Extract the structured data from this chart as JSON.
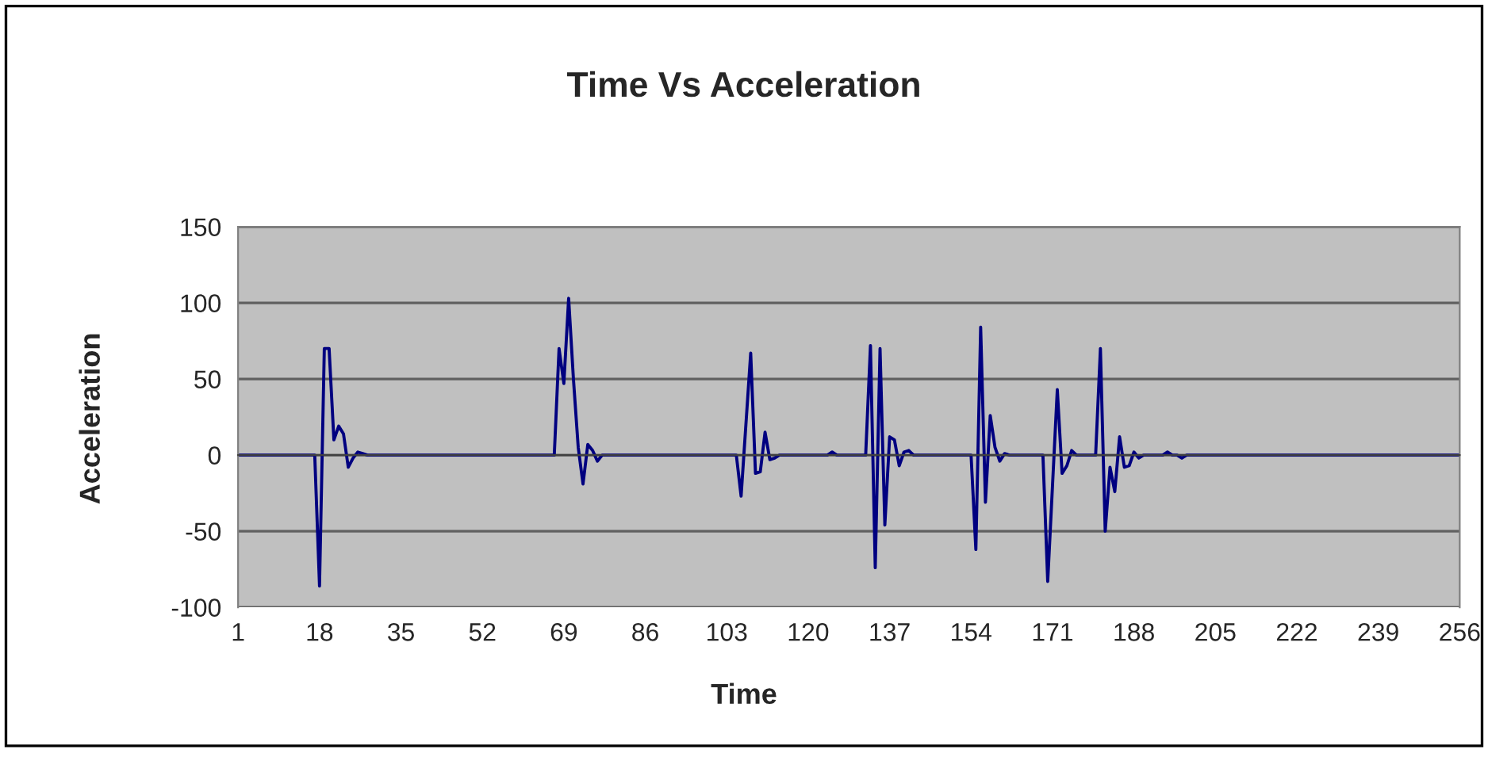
{
  "chart_data": {
    "type": "line",
    "title": "Time Vs Acceleration",
    "xlabel": "Time",
    "ylabel": "Acceleration",
    "categories": [
      "1",
      null,
      null,
      null,
      null,
      null,
      null,
      null,
      null,
      null,
      null,
      null,
      null,
      null,
      null,
      null,
      null,
      "18",
      null,
      null,
      null,
      null,
      null,
      null,
      null,
      null,
      null,
      null,
      null,
      null,
      null,
      null,
      null,
      null,
      "35",
      null,
      null,
      null,
      null,
      null,
      null,
      null,
      null,
      null,
      null,
      null,
      null,
      null,
      null,
      null,
      null,
      "52",
      null,
      null,
      null,
      null,
      null,
      null,
      null,
      null,
      null,
      null,
      null,
      null,
      null,
      null,
      null,
      null,
      "69",
      null,
      null,
      null,
      null,
      null,
      null,
      null,
      null,
      null,
      null,
      null,
      null,
      null,
      null,
      null,
      null,
      "86",
      null,
      null,
      null,
      null,
      null,
      null,
      null,
      null,
      null,
      null,
      null,
      null,
      null,
      null,
      null,
      null,
      "103",
      null,
      null,
      null,
      null,
      null,
      null,
      null,
      null,
      null,
      null,
      null,
      null,
      null,
      null,
      null,
      null,
      "120",
      null,
      null,
      null,
      null,
      null,
      null,
      null,
      null,
      null,
      null,
      null,
      null,
      null,
      null,
      null,
      null,
      "137",
      null,
      null,
      null,
      null,
      null,
      null,
      null,
      null,
      null,
      null,
      null,
      null,
      null,
      null,
      null,
      null,
      "154",
      null,
      null,
      null,
      null,
      null,
      null,
      null,
      null,
      null,
      null,
      null,
      null,
      null,
      null,
      null,
      null,
      "171",
      null,
      null,
      null,
      null,
      null,
      null,
      null,
      null,
      null,
      null,
      null,
      null,
      null,
      null,
      null,
      null,
      "188",
      null,
      null,
      null,
      null,
      null,
      null,
      null,
      null,
      null,
      null,
      null,
      null,
      null,
      null,
      null,
      null,
      "205",
      null,
      null,
      null,
      null,
      null,
      null,
      null,
      null,
      null,
      null,
      null,
      null,
      null,
      null,
      null,
      null,
      "222",
      null,
      null,
      null,
      null,
      null,
      null,
      null,
      null,
      null,
      null,
      null,
      null,
      null,
      null,
      null,
      null,
      "239",
      null,
      null,
      null,
      null,
      null,
      null,
      null,
      null,
      null,
      null,
      null,
      null,
      null,
      null,
      null,
      null,
      "256"
    ],
    "series": [
      {
        "color": "#000080",
        "values": [
          0,
          0,
          0,
          0,
          0,
          0,
          0,
          0,
          0,
          0,
          0,
          0,
          0,
          0,
          0,
          0,
          0,
          -86,
          70,
          70,
          10,
          19,
          14,
          -8,
          -2,
          2,
          1,
          0,
          0,
          0,
          0,
          0,
          0,
          0,
          0,
          0,
          0,
          0,
          0,
          0,
          0,
          0,
          0,
          0,
          0,
          0,
          0,
          0,
          0,
          0,
          0,
          0,
          0,
          0,
          0,
          0,
          0,
          0,
          0,
          0,
          0,
          0,
          0,
          0,
          0,
          0,
          0,
          70,
          47,
          103,
          50,
          5,
          -19,
          7,
          3,
          -4,
          0,
          0,
          0,
          0,
          0,
          0,
          0,
          0,
          0,
          0,
          0,
          0,
          0,
          0,
          0,
          0,
          0,
          0,
          0,
          0,
          0,
          0,
          0,
          0,
          0,
          0,
          0,
          0,
          0,
          -27,
          20,
          67,
          -12,
          -11,
          15,
          -3,
          -2,
          0,
          0,
          0,
          0,
          0,
          0,
          0,
          0,
          0,
          0,
          0,
          2,
          0,
          0,
          0,
          0,
          0,
          0,
          0,
          72,
          -74,
          70,
          -46,
          12,
          10,
          -7,
          2,
          3,
          0,
          0,
          0,
          0,
          0,
          0,
          0,
          0,
          0,
          0,
          0,
          0,
          0,
          -62,
          84,
          -31,
          26,
          5,
          -4,
          1,
          0,
          0,
          0,
          0,
          0,
          0,
          0,
          0,
          -83,
          -20,
          43,
          -12,
          -7,
          3,
          0,
          0,
          0,
          0,
          0,
          70,
          -50,
          -8,
          -24,
          12,
          -8,
          -7,
          2,
          -2,
          0,
          0,
          0,
          0,
          0,
          2,
          0,
          0,
          -2,
          0,
          0,
          0,
          0,
          0,
          0,
          0,
          0,
          0,
          0,
          0,
          0,
          0,
          0,
          0,
          0,
          0,
          0,
          0,
          0,
          0,
          0,
          0,
          0,
          0,
          0,
          0,
          0,
          0,
          0,
          0,
          0,
          0,
          0,
          0,
          0,
          0,
          0,
          0,
          0,
          0,
          0,
          0,
          0,
          0,
          0,
          0,
          0,
          0,
          0,
          0,
          0,
          0,
          0,
          0,
          0,
          0,
          0
        ]
      }
    ],
    "ylim": [
      -100,
      150
    ],
    "yticks": [
      -100,
      -50,
      0,
      50,
      100,
      150
    ],
    "grid": "y",
    "legend": false,
    "marker": "none",
    "line_style": "solid"
  }
}
